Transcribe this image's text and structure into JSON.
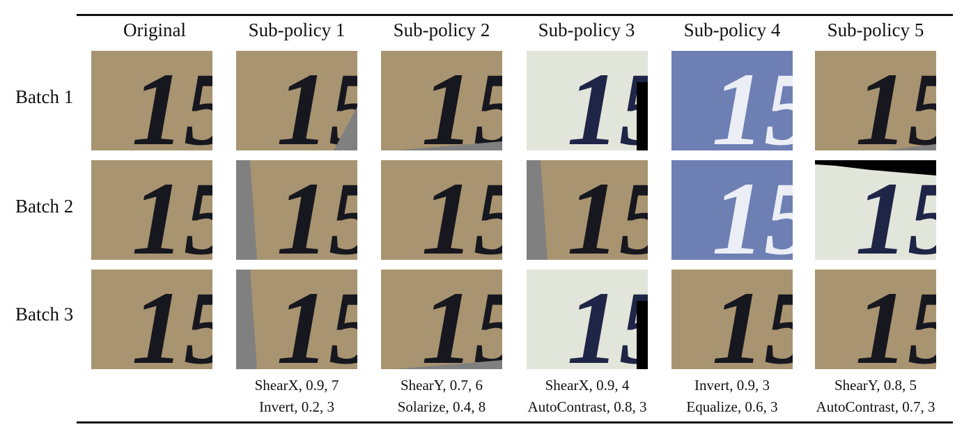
{
  "columns": [
    "Original",
    "Sub-policy 1",
    "Sub-policy 2",
    "Sub-policy 3",
    "Sub-policy 4",
    "Sub-policy 5"
  ],
  "rows": [
    "Batch 1",
    "Batch 2",
    "Batch 3"
  ],
  "digit_text": "15",
  "captions": [
    [
      "ShearX, 0.9, 7",
      "Invert, 0.2, 3"
    ],
    [
      "ShearY, 0.7, 6",
      "Solarize, 0.4, 8"
    ],
    [
      "ShearX, 0.9, 4",
      "AutoContrast, 0.8, 3"
    ],
    [
      "Invert, 0.9, 3",
      "Equalize, 0.6, 3"
    ],
    [
      "ShearY, 0.8, 5",
      "AutoContrast, 0.7, 3"
    ]
  ],
  "colors": {
    "tan_bg": "#a89470",
    "dark_digit": "#17171f",
    "blue_bg": "#6d7fb3",
    "light_digit": "#eceef6",
    "pale_bg": "#e2e5da",
    "navy_digit": "#1e2547",
    "gray_fill": "#808080",
    "black_fill": "#000000"
  }
}
